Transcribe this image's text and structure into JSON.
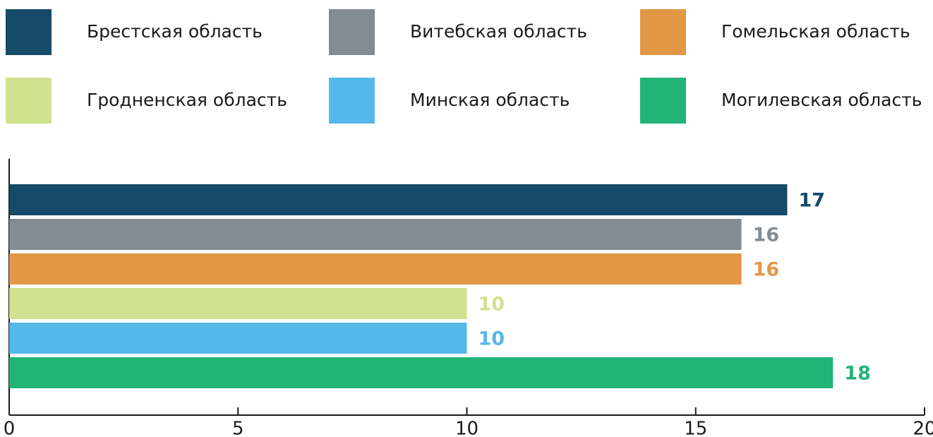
{
  "chart_data": {
    "type": "bar",
    "orientation": "horizontal",
    "series": [
      {
        "name": "Брестская область",
        "color": "#154a69",
        "values": [
          17
        ]
      },
      {
        "name": "Витебская область",
        "color": "#838b93",
        "values": [
          16
        ]
      },
      {
        "name": "Гомельская область",
        "color": "#e29746",
        "values": [
          16
        ]
      },
      {
        "name": "Гродненская область",
        "color": "#d1e28e",
        "values": [
          10
        ]
      },
      {
        "name": "Минская область",
        "color": "#55b7ea",
        "values": [
          10
        ]
      },
      {
        "name": "Могилевская область",
        "color": "#22b477",
        "values": [
          18
        ]
      }
    ],
    "xlim": [
      0,
      20
    ],
    "xticks": [
      0,
      5,
      10,
      15,
      20
    ]
  }
}
